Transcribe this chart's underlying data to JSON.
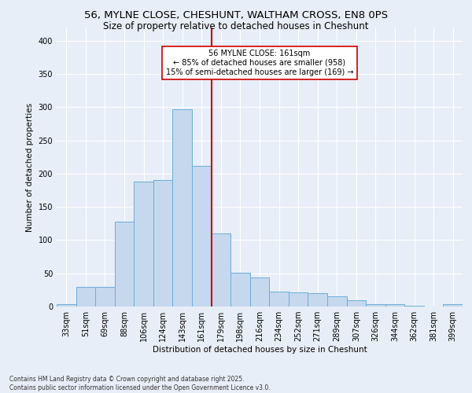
{
  "title1": "56, MYLNE CLOSE, CHESHUNT, WALTHAM CROSS, EN8 0PS",
  "title2": "Size of property relative to detached houses in Cheshunt",
  "xlabel": "Distribution of detached houses by size in Cheshunt",
  "ylabel": "Number of detached properties",
  "categories": [
    "33sqm",
    "51sqm",
    "69sqm",
    "88sqm",
    "106sqm",
    "124sqm",
    "143sqm",
    "161sqm",
    "179sqm",
    "198sqm",
    "216sqm",
    "234sqm",
    "252sqm",
    "271sqm",
    "289sqm",
    "307sqm",
    "326sqm",
    "344sqm",
    "362sqm",
    "381sqm",
    "399sqm"
  ],
  "values": [
    4,
    29,
    29,
    128,
    188,
    190,
    297,
    212,
    110,
    51,
    44,
    22,
    21,
    20,
    15,
    10,
    4,
    4,
    1,
    0,
    4
  ],
  "bar_color": "#c5d8ee",
  "bar_edge_color": "#6baed6",
  "vline_x": 7.5,
  "vline_color": "#cc0000",
  "annotation_text": "56 MYLNE CLOSE: 161sqm\n← 85% of detached houses are smaller (958)\n15% of semi-detached houses are larger (169) →",
  "annotation_box_color": "#ffffff",
  "annotation_box_edge": "#cc0000",
  "ylim": [
    0,
    420
  ],
  "yticks": [
    0,
    50,
    100,
    150,
    200,
    250,
    300,
    350,
    400
  ],
  "bg_color": "#e8eef7",
  "plot_bg_color": "#e8eef7",
  "grid_color": "#ffffff",
  "footer": "Contains HM Land Registry data © Crown copyright and database right 2025.\nContains public sector information licensed under the Open Government Licence v3.0.",
  "title_fontsize": 9.5,
  "subtitle_fontsize": 8.5,
  "axis_fontsize": 7.5,
  "tick_fontsize": 7,
  "ylabel_fontsize": 7.5,
  "footer_fontsize": 5.5
}
